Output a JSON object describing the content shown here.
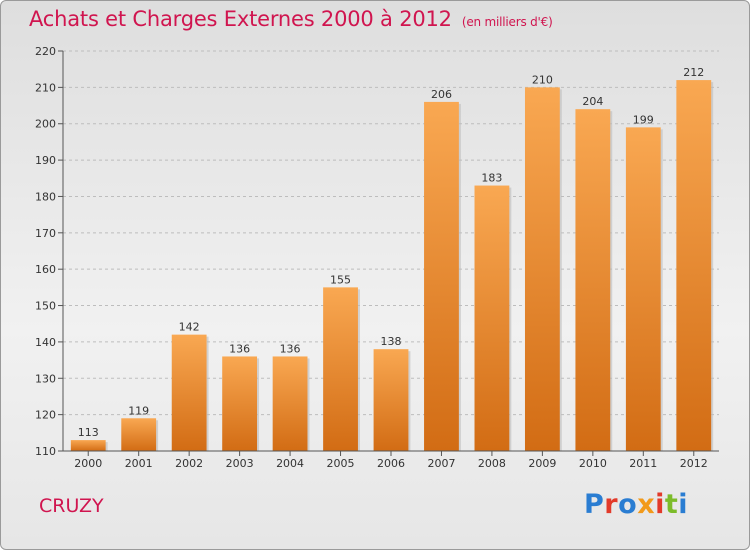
{
  "title": "Achats et Charges Externes 2000 à 2012",
  "title_unit": "(en milliers d'€)",
  "commune": "CRUZY",
  "logo_text": "Proxiti",
  "colors": {
    "title": "#d0154f",
    "bar_top": "#f9a852",
    "bar_bottom": "#d26c14",
    "logo": [
      "#2a7dd2",
      "#e23a2a",
      "#2a7dd2",
      "#f29a1a",
      "#e23a2a",
      "#7cbc2a",
      "#2a7dd2"
    ]
  },
  "chart_data": {
    "type": "bar",
    "categories": [
      "2000",
      "2001",
      "2002",
      "2003",
      "2004",
      "2005",
      "2006",
      "2007",
      "2008",
      "2009",
      "2010",
      "2011",
      "2012"
    ],
    "values": [
      113,
      119,
      142,
      136,
      136,
      155,
      138,
      206,
      183,
      210,
      204,
      199,
      212
    ],
    "ylim": [
      110,
      220
    ],
    "yticks": [
      110,
      120,
      130,
      140,
      150,
      160,
      170,
      180,
      190,
      200,
      210,
      220
    ],
    "grid": "horizontal-dashed",
    "legend": "none"
  }
}
